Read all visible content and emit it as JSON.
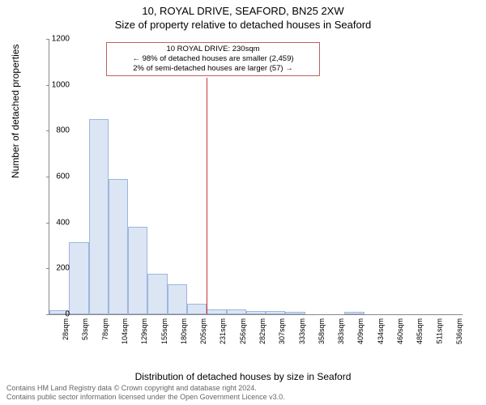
{
  "title_main": "10, ROYAL DRIVE, SEAFORD, BN25 2XW",
  "title_sub": "Size of property relative to detached houses in Seaford",
  "chart": {
    "type": "histogram",
    "y_label": "Number of detached properties",
    "x_label": "Distribution of detached houses by size in Seaford",
    "ylim": [
      0,
      1200
    ],
    "ytick_step": 200,
    "y_ticks": [
      0,
      200,
      400,
      600,
      800,
      1000,
      1200
    ],
    "x_tick_labels": [
      "28sqm",
      "53sqm",
      "78sqm",
      "104sqm",
      "129sqm",
      "155sqm",
      "180sqm",
      "205sqm",
      "231sqm",
      "256sqm",
      "282sqm",
      "307sqm",
      "333sqm",
      "358sqm",
      "383sqm",
      "409sqm",
      "434sqm",
      "460sqm",
      "485sqm",
      "511sqm",
      "536sqm"
    ],
    "bar_values": [
      18,
      315,
      850,
      590,
      380,
      175,
      130,
      47,
      22,
      20,
      15,
      15,
      10,
      0,
      0,
      12,
      0,
      0,
      0,
      0,
      0
    ],
    "bar_fill": "#dbe5f4",
    "bar_border": "#9db6dc",
    "marker_color": "#cc3333",
    "marker_bin_index": 8,
    "background_color": "#ffffff",
    "axis_color": "#888888",
    "annotation": {
      "line1": "10 ROYAL DRIVE: 230sqm",
      "line2": "← 98% of detached houses are smaller (2,459)",
      "line3": "2% of semi-detached houses are larger (57) →",
      "border_color": "#c06060"
    }
  },
  "footer": {
    "line1": "Contains HM Land Registry data © Crown copyright and database right 2024.",
    "line2": "Contains public sector information licensed under the Open Government Licence v3.0."
  }
}
